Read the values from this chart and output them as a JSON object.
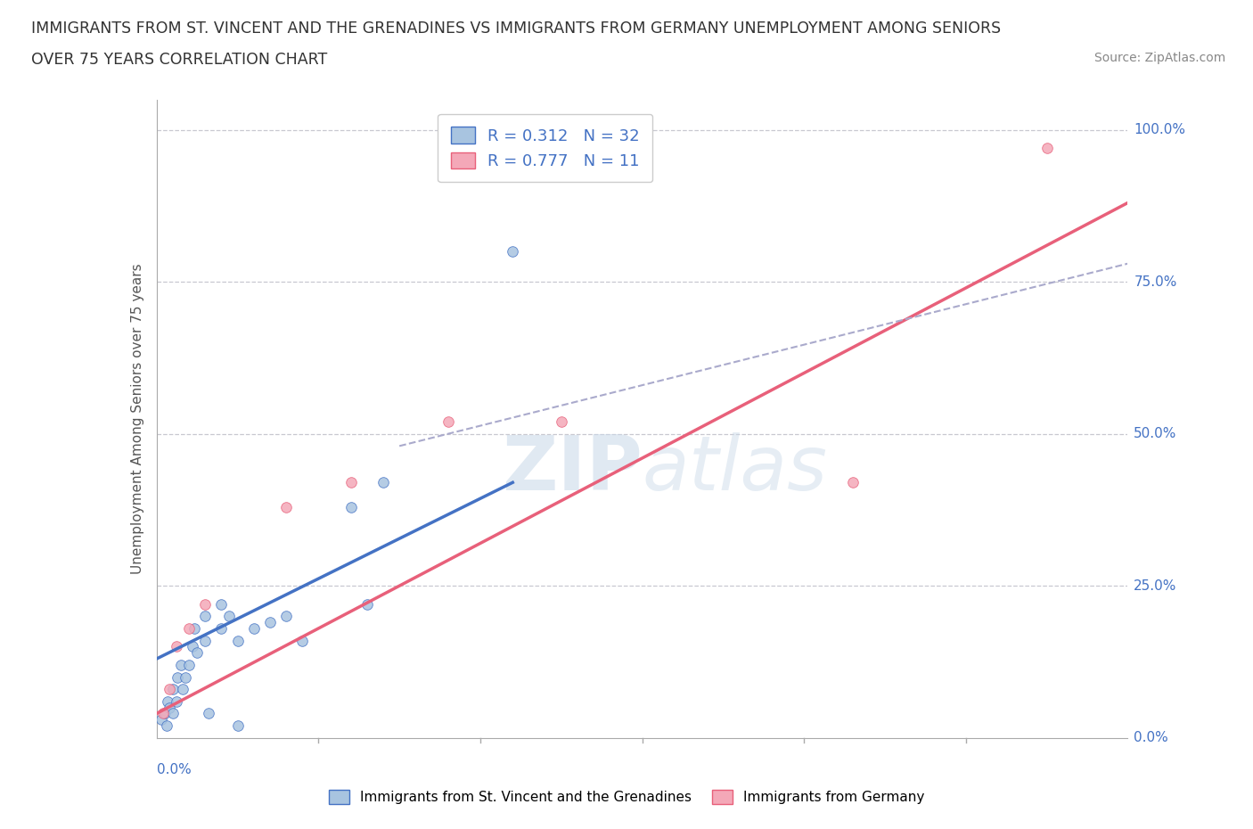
{
  "title_line1": "IMMIGRANTS FROM ST. VINCENT AND THE GRENADINES VS IMMIGRANTS FROM GERMANY UNEMPLOYMENT AMONG SENIORS",
  "title_line2": "OVER 75 YEARS CORRELATION CHART",
  "source": "Source: ZipAtlas.com",
  "xlabel_label": "Immigrants from St. Vincent and the Grenadines",
  "ylabel_label": "Unemployment Among Seniors over 75 years",
  "xmin": 0.0,
  "xmax": 0.06,
  "ymin": 0.0,
  "ymax": 1.05,
  "xtick_left_label": "0.0%",
  "yticks": [
    0.0,
    0.25,
    0.5,
    0.75,
    1.0
  ],
  "ytick_labels_right": [
    "0.0%",
    "25.0%",
    "50.0%",
    "75.0%",
    "100.0%"
  ],
  "blue_color": "#a8c4e0",
  "pink_color": "#f4a8b8",
  "blue_line_color": "#4472c4",
  "pink_line_color": "#e8607a",
  "dashed_line_color": "#aaaacc",
  "R_blue": 0.312,
  "N_blue": 32,
  "R_pink": 0.777,
  "N_pink": 11,
  "legend_text_color_r": "#4472c4",
  "legend_label_color": "#333333",
  "watermark": "ZIPatlas",
  "blue_points_x": [
    0.0003,
    0.0005,
    0.0006,
    0.0007,
    0.0008,
    0.001,
    0.001,
    0.0012,
    0.0013,
    0.0015,
    0.0016,
    0.0018,
    0.002,
    0.0022,
    0.0023,
    0.0025,
    0.003,
    0.003,
    0.0032,
    0.004,
    0.004,
    0.0045,
    0.005,
    0.005,
    0.006,
    0.007,
    0.008,
    0.009,
    0.012,
    0.014,
    0.022,
    0.013
  ],
  "blue_points_y": [
    0.03,
    0.04,
    0.02,
    0.06,
    0.05,
    0.04,
    0.08,
    0.06,
    0.1,
    0.12,
    0.08,
    0.1,
    0.12,
    0.15,
    0.18,
    0.14,
    0.16,
    0.2,
    0.04,
    0.18,
    0.22,
    0.2,
    0.02,
    0.16,
    0.18,
    0.19,
    0.2,
    0.16,
    0.38,
    0.42,
    0.8,
    0.22
  ],
  "pink_points_x": [
    0.0004,
    0.0008,
    0.0012,
    0.002,
    0.003,
    0.008,
    0.012,
    0.018,
    0.025,
    0.043,
    0.055
  ],
  "pink_points_y": [
    0.04,
    0.08,
    0.15,
    0.18,
    0.22,
    0.38,
    0.42,
    0.52,
    0.52,
    0.42,
    0.97
  ],
  "blue_trend_x": [
    0.0,
    0.022
  ],
  "blue_trend_y": [
    0.13,
    0.42
  ],
  "pink_trend_x": [
    0.0,
    0.06
  ],
  "pink_trend_y": [
    0.04,
    0.88
  ],
  "dashed_trend_x": [
    0.015,
    0.06
  ],
  "dashed_trend_y": [
    0.48,
    0.78
  ]
}
